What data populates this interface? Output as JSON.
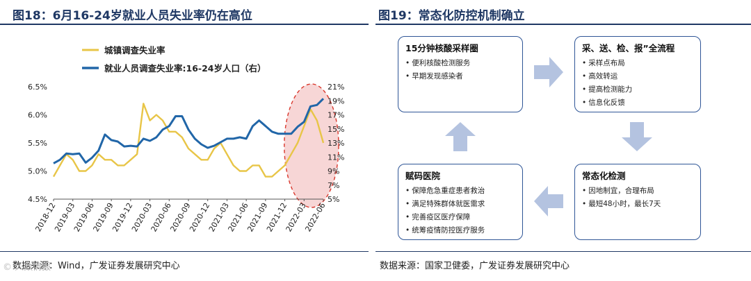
{
  "left_panel": {
    "title": "图18：6月16-24岁就业人员失业率仍在高位",
    "source": "数据来源：Wind，广发证券发展研究中心"
  },
  "right_panel": {
    "title": "图19：常态化防控机制确立",
    "source": "数据来源：国家卫健委，广发证券发展研究中心",
    "boxes": [
      {
        "title": "15分钟核酸采样圈",
        "items": [
          "便利核酸检测服务",
          "早期发现感染者"
        ]
      },
      {
        "title": "采、送、检、报”全流程",
        "items": [
          "采样点布局",
          "高效转运",
          "提高检测能力",
          "信息化反馈"
        ]
      },
      {
        "title": "常态化检测",
        "items": [
          "因地制宜，合理布局",
          "最短48小时，最长7天"
        ]
      },
      {
        "title": "赋码医院",
        "items": [
          "保障危急重症患者救治",
          "满足特殊群体就医需求",
          "完善疫区医疗保障",
          "统筹疫情防控医疗服务"
        ]
      }
    ],
    "arrow_color": "#b4c3e0"
  },
  "watermark": "© 人数情报",
  "chart_data": {
    "type": "line",
    "x": [
      "2018-12",
      "2019-01",
      "2019-02",
      "2019-03",
      "2019-04",
      "2019-05",
      "2019-06",
      "2019-07",
      "2019-08",
      "2019-09",
      "2019-10",
      "2019-11",
      "2019-12",
      "2020-01",
      "2020-02",
      "2020-03",
      "2020-04",
      "2020-05",
      "2020-06",
      "2020-07",
      "2020-08",
      "2020-09",
      "2020-10",
      "2020-11",
      "2020-12",
      "2021-01",
      "2021-02",
      "2021-03",
      "2021-04",
      "2021-05",
      "2021-06",
      "2021-07",
      "2021-08",
      "2021-09",
      "2021-10",
      "2021-11",
      "2021-12",
      "2022-01",
      "2022-02",
      "2022-03",
      "2022-04",
      "2022-05",
      "2022-06"
    ],
    "x_tick_labels": [
      "2018-12",
      "2019-03",
      "2019-06",
      "2019-09",
      "2019-12",
      "2020-03",
      "2020-06",
      "2020-09",
      "2020-12",
      "2021-03",
      "2021-06",
      "2021-09",
      "2021-12",
      "2022-03",
      "2022-06"
    ],
    "series": [
      {
        "name": "城镇调查失业率",
        "axis": "left",
        "color": "#e8c547",
        "values": [
          4.9,
          5.1,
          5.3,
          5.2,
          5.0,
          5.0,
          5.1,
          5.3,
          5.2,
          5.2,
          5.1,
          5.1,
          5.2,
          5.3,
          6.2,
          5.9,
          6.0,
          5.9,
          5.7,
          5.7,
          5.6,
          5.4,
          5.3,
          5.2,
          5.2,
          5.4,
          5.5,
          5.3,
          5.1,
          5.0,
          5.0,
          5.1,
          5.1,
          4.9,
          4.9,
          5.0,
          5.1,
          5.3,
          5.5,
          5.8,
          6.1,
          5.9,
          5.5
        ]
      },
      {
        "name": "就业人员调查失业率:16-24岁人口（右）",
        "axis": "right",
        "color": "#2166a8",
        "values": [
          10.1,
          10.6,
          11.5,
          11.4,
          11.5,
          10.2,
          10.9,
          11.9,
          14.2,
          13.4,
          13.2,
          12.5,
          12.6,
          12.5,
          13.6,
          13.3,
          13.8,
          14.9,
          15.4,
          16.8,
          16.8,
          14.9,
          13.6,
          12.8,
          12.3,
          12.6,
          13.1,
          13.6,
          13.6,
          13.8,
          13.6,
          15.4,
          16.2,
          15.4,
          14.6,
          14.3,
          14.3,
          14.3,
          15.3,
          16.0,
          18.2,
          18.4,
          19.3
        ]
      }
    ],
    "y_left": {
      "min": 4.5,
      "max": 6.5,
      "ticks": [
        "4.5%",
        "5.0%",
        "5.5%",
        "6.0%",
        "6.5%"
      ]
    },
    "y_right": {
      "min": 5,
      "max": 21,
      "ticks": [
        "5%",
        "7%",
        "9%",
        "11%",
        "13%",
        "15%",
        "17%",
        "19%",
        "21%"
      ]
    },
    "highlight": {
      "type": "dashed-ellipse",
      "around": [
        "2022-01",
        "2022-06"
      ],
      "fill": "#f7d6d6",
      "stroke": "#d9362b"
    },
    "grid": false,
    "legend_position": "top-left"
  }
}
